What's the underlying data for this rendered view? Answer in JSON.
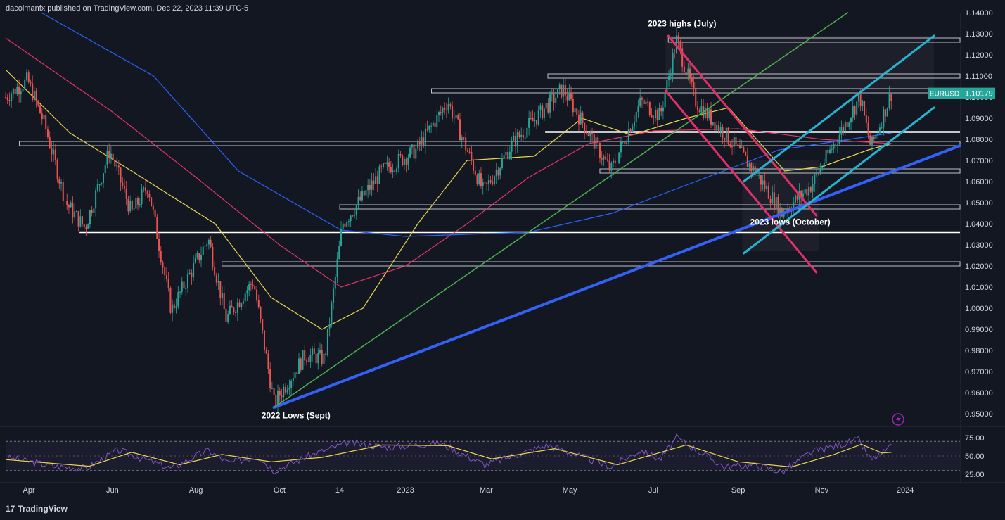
{
  "header": {
    "publish_text": "dacolmanfx published on TradingView.com, Dec 22, 2023 11:39 UTC-5"
  },
  "footer": {
    "brand": "TradingView",
    "logo_glyph": "17"
  },
  "colors": {
    "background": "#131722",
    "up": "#26a69a",
    "down": "#ef5350",
    "ma_yellow": "#e8d44d",
    "ma_red": "#e53368",
    "ma_blue": "#2962ff",
    "trend_blue": "#3461f5",
    "trend_green": "#4caf50",
    "channel_cyan": "#26b3d1",
    "channel_pink": "#e0306a",
    "rsi": "#7e57c2",
    "rsi_ma": "#e8d44d",
    "price_tag": "#26a69a"
  },
  "chart_data": {
    "type": "candlestick",
    "symbol": "EURUSD",
    "last_price": "1.10179",
    "ylim": [
      0.944,
      1.14
    ],
    "y_ticks": [
      "1.14000",
      "1.13000",
      "1.12000",
      "1.11000",
      "1.10000",
      "1.09000",
      "1.08000",
      "1.07000",
      "1.06000",
      "1.05000",
      "1.04000",
      "1.03000",
      "1.02000",
      "1.01000",
      "1.00000",
      "0.99000",
      "0.98000",
      "0.97000",
      "0.96000",
      "0.95000"
    ],
    "x_ticks": [
      "Apr",
      "Jun",
      "Aug",
      "Oct",
      "14",
      "2023",
      "Mar",
      "May",
      "Jul",
      "Sep",
      "Nov",
      "2024"
    ],
    "x_range": [
      "2022-03-15",
      "2024-02-10"
    ],
    "x_tick_dates": [
      "2022-04-01",
      "2022-06-01",
      "2022-08-01",
      "2022-10-01",
      "2022-11-14",
      "2023-01-01",
      "2023-03-01",
      "2023-05-01",
      "2023-07-01",
      "2023-09-01",
      "2023-11-01",
      "2024-01-01"
    ],
    "price_path": [
      {
        "x": "2022-03-15",
        "y": 1.1
      },
      {
        "x": "2022-03-31",
        "y": 1.108
      },
      {
        "x": "2022-04-12",
        "y": 1.088
      },
      {
        "x": "2022-04-28",
        "y": 1.05
      },
      {
        "x": "2022-05-12",
        "y": 1.038
      },
      {
        "x": "2022-05-30",
        "y": 1.075
      },
      {
        "x": "2022-06-15",
        "y": 1.045
      },
      {
        "x": "2022-06-27",
        "y": 1.058
      },
      {
        "x": "2022-07-14",
        "y": 0.999
      },
      {
        "x": "2022-08-10",
        "y": 1.033
      },
      {
        "x": "2022-08-23",
        "y": 0.995
      },
      {
        "x": "2022-09-12",
        "y": 1.013
      },
      {
        "x": "2022-09-27",
        "y": 0.955
      },
      {
        "x": "2022-10-20",
        "y": 0.978
      },
      {
        "x": "2022-11-03",
        "y": 0.976
      },
      {
        "x": "2022-11-16",
        "y": 1.04
      },
      {
        "x": "2022-12-15",
        "y": 1.065
      },
      {
        "x": "2023-01-09",
        "y": 1.075
      },
      {
        "x": "2023-02-01",
        "y": 1.098
      },
      {
        "x": "2023-02-27",
        "y": 1.055
      },
      {
        "x": "2023-03-20",
        "y": 1.078
      },
      {
        "x": "2023-04-26",
        "y": 1.104
      },
      {
        "x": "2023-05-31",
        "y": 1.065
      },
      {
        "x": "2023-06-22",
        "y": 1.098
      },
      {
        "x": "2023-07-06",
        "y": 1.091
      },
      {
        "x": "2023-07-18",
        "y": 1.127
      },
      {
        "x": "2023-08-01",
        "y": 1.098
      },
      {
        "x": "2023-08-23",
        "y": 1.082
      },
      {
        "x": "2023-09-14",
        "y": 1.064
      },
      {
        "x": "2023-10-03",
        "y": 1.045
      },
      {
        "x": "2023-10-24",
        "y": 1.058
      },
      {
        "x": "2023-11-29",
        "y": 1.1
      },
      {
        "x": "2023-12-07",
        "y": 1.076
      },
      {
        "x": "2023-12-22",
        "y": 1.102
      }
    ],
    "moving_averages": [
      {
        "color": "#e8d44d",
        "points": [
          {
            "x": "2022-03-15",
            "y": 1.113
          },
          {
            "x": "2022-05-01",
            "y": 1.083
          },
          {
            "x": "2022-06-15",
            "y": 1.065
          },
          {
            "x": "2022-08-15",
            "y": 1.04
          },
          {
            "x": "2022-09-25",
            "y": 1.005
          },
          {
            "x": "2022-11-01",
            "y": 0.99
          },
          {
            "x": "2022-12-01",
            "y": 1.0
          },
          {
            "x": "2023-01-10",
            "y": 1.04
          },
          {
            "x": "2023-02-15",
            "y": 1.07
          },
          {
            "x": "2023-04-05",
            "y": 1.072
          },
          {
            "x": "2023-05-10",
            "y": 1.09
          },
          {
            "x": "2023-06-15",
            "y": 1.082
          },
          {
            "x": "2023-07-25",
            "y": 1.09
          },
          {
            "x": "2023-08-25",
            "y": 1.095
          },
          {
            "x": "2023-10-05",
            "y": 1.065
          },
          {
            "x": "2023-11-01",
            "y": 1.067
          },
          {
            "x": "2023-12-05",
            "y": 1.075
          },
          {
            "x": "2023-12-22",
            "y": 1.078
          }
        ]
      },
      {
        "color": "#e53368",
        "points": [
          {
            "x": "2022-03-15",
            "y": 1.128
          },
          {
            "x": "2022-06-01",
            "y": 1.093
          },
          {
            "x": "2022-08-01",
            "y": 1.062
          },
          {
            "x": "2022-10-01",
            "y": 1.03
          },
          {
            "x": "2022-11-15",
            "y": 1.01
          },
          {
            "x": "2023-01-01",
            "y": 1.02
          },
          {
            "x": "2023-02-15",
            "y": 1.04
          },
          {
            "x": "2023-04-01",
            "y": 1.062
          },
          {
            "x": "2023-05-15",
            "y": 1.078
          },
          {
            "x": "2023-07-01",
            "y": 1.084
          },
          {
            "x": "2023-09-01",
            "y": 1.085
          },
          {
            "x": "2023-11-01",
            "y": 1.08
          },
          {
            "x": "2023-12-22",
            "y": 1.078
          }
        ]
      },
      {
        "color": "#2962ff",
        "points": [
          {
            "x": "2022-04-10",
            "y": 1.14
          },
          {
            "x": "2022-07-01",
            "y": 1.11
          },
          {
            "x": "2022-09-01",
            "y": 1.065
          },
          {
            "x": "2022-11-15",
            "y": 1.037
          },
          {
            "x": "2023-01-01",
            "y": 1.034
          },
          {
            "x": "2023-04-01",
            "y": 1.036
          },
          {
            "x": "2023-06-01",
            "y": 1.045
          },
          {
            "x": "2023-08-01",
            "y": 1.06
          },
          {
            "x": "2023-10-01",
            "y": 1.075
          },
          {
            "x": "2023-12-22",
            "y": 1.083
          }
        ]
      }
    ],
    "horizontal_levels": [
      {
        "y": 1.127,
        "x_start": "2023-07-12",
        "color": "#d1d4dc",
        "style": "band"
      },
      {
        "y": 1.11,
        "x_start": "2023-04-15",
        "color": "#d1d4dc",
        "style": "band"
      },
      {
        "y": 1.103,
        "x_start": "2023-01-20",
        "color": "#d1d4dc",
        "style": "band"
      },
      {
        "y": 1.0835,
        "x_start": "2023-04-13",
        "color": "#ffffff",
        "style": "solid"
      },
      {
        "y": 1.078,
        "x_start": "2022-03-25",
        "color": "#d1d4dc",
        "style": "band"
      },
      {
        "y": 1.065,
        "x_start": "2023-05-23",
        "color": "#d1d4dc",
        "style": "band"
      },
      {
        "y": 1.048,
        "x_start": "2022-11-14",
        "color": "#d1d4dc",
        "style": "band"
      },
      {
        "y": 1.036,
        "x_start": "2022-05-08",
        "color": "#ffffff",
        "style": "solid"
      },
      {
        "y": 1.021,
        "x_start": "2022-08-20",
        "color": "#d1d4dc",
        "style": "band"
      }
    ],
    "trendlines": [
      {
        "from": {
          "x": "2022-09-27",
          "y": 0.953
        },
        "to": {
          "x": "2024-02-10",
          "y": 1.077
        },
        "color": "#3461f5",
        "width": 4
      },
      {
        "from": {
          "x": "2022-09-27",
          "y": 0.953
        },
        "to": {
          "x": "2023-11-20",
          "y": 1.14
        },
        "color": "#4caf50",
        "width": 1.5
      },
      {
        "from": {
          "x": "2023-07-12",
          "y": 1.129
        },
        "to": {
          "x": "2023-10-28",
          "y": 1.044
        },
        "color": "#e0306a",
        "width": 3
      },
      {
        "from": {
          "x": "2023-07-10",
          "y": 1.103
        },
        "to": {
          "x": "2023-10-28",
          "y": 1.017
        },
        "color": "#e0306a",
        "width": 3
      },
      {
        "from": {
          "x": "2023-09-05",
          "y": 1.06
        },
        "to": {
          "x": "2024-01-22",
          "y": 1.129
        },
        "color": "#26b3d1",
        "width": 3
      },
      {
        "from": {
          "x": "2023-09-05",
          "y": 1.026
        },
        "to": {
          "x": "2024-01-22",
          "y": 1.095
        },
        "color": "#26b3d1",
        "width": 3
      }
    ],
    "annotations": [
      {
        "text": "2023 highs (July)",
        "x": "2023-07-22",
        "y": 1.1335
      },
      {
        "text": "2023 lows (October)",
        "x": "2023-10-09",
        "y": 1.0395
      },
      {
        "text": "2022 Lows (Sept)",
        "x": "2022-10-13",
        "y": 0.9478
      }
    ],
    "rsi": {
      "levels": [
        75,
        50,
        25
      ],
      "labels": [
        "75.00",
        "50.00",
        "25.00"
      ],
      "dashed": [
        70,
        30
      ],
      "values": [
        {
          "x": "2022-03-15",
          "y": 48
        },
        {
          "x": "2022-04-20",
          "y": 36
        },
        {
          "x": "2022-05-13",
          "y": 33
        },
        {
          "x": "2022-06-05",
          "y": 58
        },
        {
          "x": "2022-07-14",
          "y": 33
        },
        {
          "x": "2022-08-10",
          "y": 58
        },
        {
          "x": "2022-08-25",
          "y": 40
        },
        {
          "x": "2022-09-15",
          "y": 50
        },
        {
          "x": "2022-09-27",
          "y": 30
        },
        {
          "x": "2022-10-25",
          "y": 52
        },
        {
          "x": "2022-11-20",
          "y": 68
        },
        {
          "x": "2022-12-20",
          "y": 62
        },
        {
          "x": "2023-01-26",
          "y": 68
        },
        {
          "x": "2023-02-28",
          "y": 38
        },
        {
          "x": "2023-04-15",
          "y": 65
        },
        {
          "x": "2023-05-31",
          "y": 35
        },
        {
          "x": "2023-06-22",
          "y": 58
        },
        {
          "x": "2023-07-06",
          "y": 45
        },
        {
          "x": "2023-07-18",
          "y": 75
        },
        {
          "x": "2023-08-22",
          "y": 35
        },
        {
          "x": "2023-09-14",
          "y": 38
        },
        {
          "x": "2023-10-03",
          "y": 28
        },
        {
          "x": "2023-10-24",
          "y": 55
        },
        {
          "x": "2023-11-28",
          "y": 72
        },
        {
          "x": "2023-12-07",
          "y": 44
        },
        {
          "x": "2023-12-22",
          "y": 62
        }
      ],
      "ma": [
        {
          "x": "2022-03-15",
          "y": 45
        },
        {
          "x": "2022-05-15",
          "y": 36
        },
        {
          "x": "2022-06-15",
          "y": 55
        },
        {
          "x": "2022-07-20",
          "y": 38
        },
        {
          "x": "2022-08-20",
          "y": 52
        },
        {
          "x": "2022-09-25",
          "y": 42
        },
        {
          "x": "2022-11-01",
          "y": 48
        },
        {
          "x": "2022-12-15",
          "y": 65
        },
        {
          "x": "2023-02-01",
          "y": 64
        },
        {
          "x": "2023-03-05",
          "y": 46
        },
        {
          "x": "2023-04-20",
          "y": 60
        },
        {
          "x": "2023-06-05",
          "y": 38
        },
        {
          "x": "2023-07-25",
          "y": 65
        },
        {
          "x": "2023-09-01",
          "y": 42
        },
        {
          "x": "2023-10-10",
          "y": 35
        },
        {
          "x": "2023-11-10",
          "y": 52
        },
        {
          "x": "2023-11-30",
          "y": 66
        },
        {
          "x": "2023-12-15",
          "y": 54
        },
        {
          "x": "2023-12-22",
          "y": 55
        }
      ]
    }
  }
}
